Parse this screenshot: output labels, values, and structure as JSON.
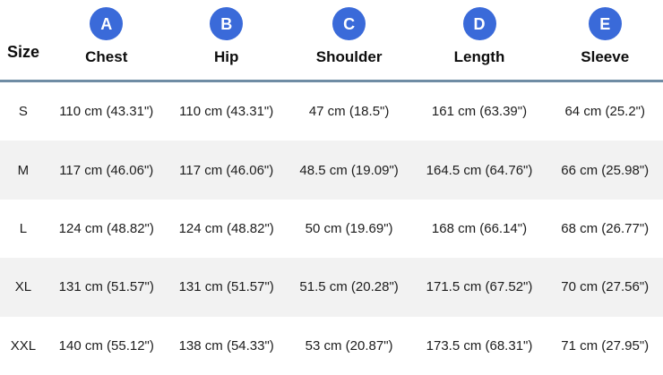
{
  "colors": {
    "badge_blue": "#3a6ad9",
    "header_border_blue_gray": "#6f8ca4",
    "row_stripe_gray": "#f2f2f2",
    "text_dark": "#1c1c1c"
  },
  "chart_data": {
    "type": "table",
    "corner_label": "Size",
    "layout": {
      "striped_rows": [
        "M",
        "XL"
      ],
      "header_badges_shape": "blue-circle-letter"
    },
    "columns": [
      {
        "badge": "A",
        "label": "Chest"
      },
      {
        "badge": "B",
        "label": "Hip"
      },
      {
        "badge": "C",
        "label": "Shoulder"
      },
      {
        "badge": "D",
        "label": "Length"
      },
      {
        "badge": "E",
        "label": "Sleeve"
      }
    ],
    "rows": [
      [
        "S",
        "110 cm (43.31\")",
        "110 cm (43.31\")",
        "47 cm (18.5\")",
        "161 cm (63.39\")",
        "64 cm (25.2\")"
      ],
      [
        "M",
        "117 cm (46.06\")",
        "117 cm (46.06\")",
        "48.5 cm (19.09\")",
        "164.5 cm (64.76\")",
        "66 cm (25.98\")"
      ],
      [
        "L",
        "124 cm (48.82\")",
        "124 cm (48.82\")",
        "50 cm (19.69\")",
        "168 cm (66.14\")",
        "68 cm (26.77\")"
      ],
      [
        "XL",
        "131 cm (51.57\")",
        "131 cm (51.57\")",
        "51.5 cm (20.28\")",
        "171.5 cm (67.52\")",
        "70 cm (27.56\")"
      ],
      [
        "XXL",
        "140 cm (55.12\")",
        "138 cm (54.33\")",
        "53 cm (20.87\")",
        "173.5 cm (68.31\")",
        "71 cm (27.95\")"
      ]
    ]
  }
}
